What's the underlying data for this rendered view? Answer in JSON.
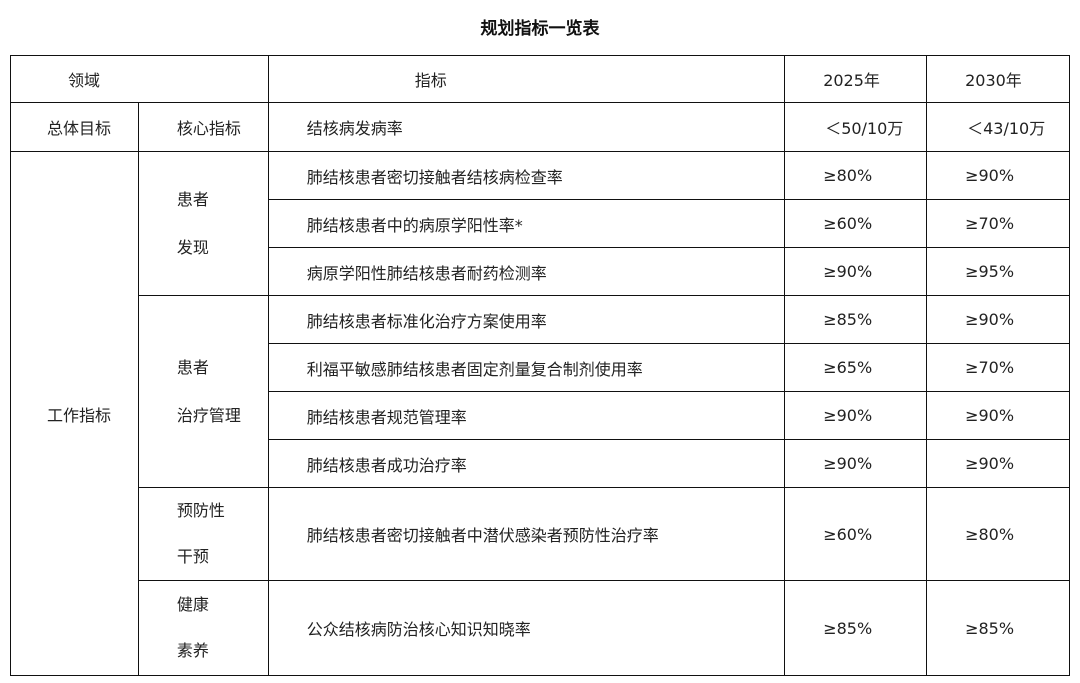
{
  "title": "规划指标一览表",
  "header": {
    "area": "领域",
    "indicator": "指标",
    "y2025": "2025年",
    "y2030": "2030年"
  },
  "overall": {
    "area": "总体目标",
    "sub": "核心指标",
    "indicator": "结核病发病率",
    "y2025": "＜50/10万",
    "y2030": "＜43/10万"
  },
  "work_area": "工作指标",
  "groups": [
    {
      "name_l1": "患者",
      "name_l2": "发现",
      "rows": [
        {
          "indicator": "肺结核患者密切接触者结核病检查率",
          "y2025": "≥80%",
          "y2030": "≥90%"
        },
        {
          "indicator": "肺结核患者中的病原学阳性率*",
          "y2025": "≥60%",
          "y2030": "≥70%"
        },
        {
          "indicator": "病原学阳性肺结核患者耐药检测率",
          "y2025": "≥90%",
          "y2030": "≥95%"
        }
      ]
    },
    {
      "name_l1": "患者",
      "name_l2": "治疗管理",
      "rows": [
        {
          "indicator": "肺结核患者标准化治疗方案使用率",
          "y2025": "≥85%",
          "y2030": "≥90%"
        },
        {
          "indicator": "利福平敏感肺结核患者固定剂量复合制剂使用率",
          "y2025": "≥65%",
          "y2030": "≥70%"
        },
        {
          "indicator": "肺结核患者规范管理率",
          "y2025": "≥90%",
          "y2030": "≥90%"
        },
        {
          "indicator": "肺结核患者成功治疗率",
          "y2025": "≥90%",
          "y2030": "≥90%"
        }
      ]
    },
    {
      "name_l1": "预防性",
      "name_l2": "干预",
      "rows": [
        {
          "indicator": "肺结核患者密切接触者中潜伏感染者预防性治疗率",
          "y2025": "≥60%",
          "y2030": "≥80%"
        }
      ]
    },
    {
      "name_l1": "健康",
      "name_l2": "素养",
      "rows": [
        {
          "indicator": "公众结核病防治核心知识知晓率",
          "y2025": "≥85%",
          "y2030": "≥85%"
        }
      ]
    }
  ]
}
